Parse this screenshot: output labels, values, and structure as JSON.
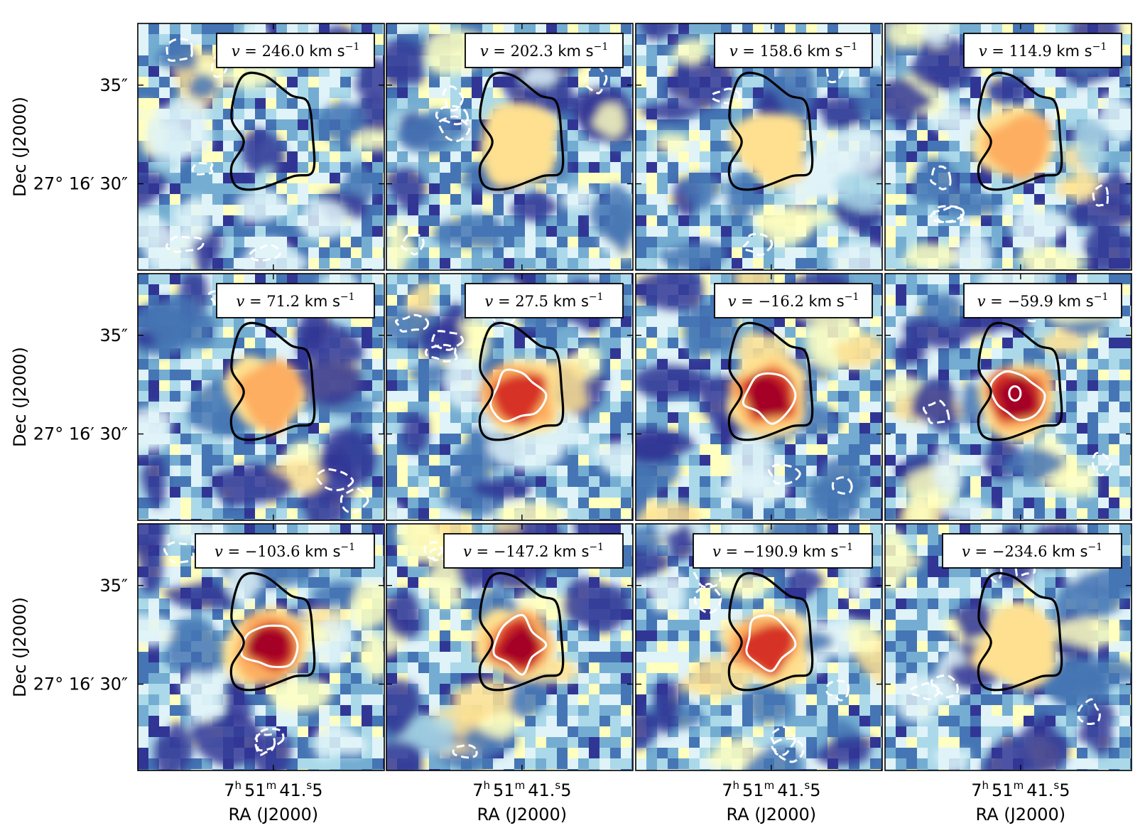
{
  "chart_data": {
    "type": "heatmap",
    "title": "",
    "layout": "3 rows x 4 columns of channel maps",
    "xlabel": "RA (J2000)",
    "ylabel": "Dec (J2000)",
    "x_tick_label": "7h51m41.s5",
    "x_tick_parts": {
      "h": "7",
      "h_unit": "h",
      "m": "51",
      "m_unit": "m",
      "s_int": "41.",
      "s_unit": "s",
      "s_frac": "5"
    },
    "y_tick_labels": [
      "35″",
      "27° 16′ 30″"
    ],
    "velocity_unit": "km s⁻¹",
    "panels": [
      {
        "row": 0,
        "col": 0,
        "label": "v = 246.0 km s⁻¹",
        "velocity": 246.0,
        "peak": 0.45
      },
      {
        "row": 0,
        "col": 1,
        "label": "v = 202.3 km s⁻¹",
        "velocity": 202.3,
        "peak": 0.55
      },
      {
        "row": 0,
        "col": 2,
        "label": "v = 158.6 km s⁻¹",
        "velocity": 158.6,
        "peak": 0.62
      },
      {
        "row": 0,
        "col": 3,
        "label": "v = 114.9 km s⁻¹",
        "velocity": 114.9,
        "peak": 0.68
      },
      {
        "row": 1,
        "col": 0,
        "label": "v = 71.2 km s⁻¹",
        "velocity": 71.2,
        "peak": 0.78
      },
      {
        "row": 1,
        "col": 1,
        "label": "v = 27.5 km s⁻¹",
        "velocity": 27.5,
        "peak": 0.85
      },
      {
        "row": 1,
        "col": 2,
        "label": "v = −16.2 km s⁻¹",
        "velocity": -16.2,
        "peak": 0.95
      },
      {
        "row": 1,
        "col": 3,
        "label": "v = −59.9 km s⁻¹",
        "velocity": -59.9,
        "peak": 0.97
      },
      {
        "row": 2,
        "col": 0,
        "label": "v = −103.6 km s⁻¹",
        "velocity": -103.6,
        "peak": 0.95
      },
      {
        "row": 2,
        "col": 1,
        "label": "v = −147.2 km s⁻¹",
        "velocity": -147.2,
        "peak": 0.93
      },
      {
        "row": 2,
        "col": 2,
        "label": "v = −190.9 km s⁻¹",
        "velocity": -190.9,
        "peak": 0.8
      },
      {
        "row": 2,
        "col": 3,
        "label": "v = −234.6 km s⁻¹",
        "velocity": -234.6,
        "peak": 0.62
      }
    ],
    "colormap": [
      "#313695",
      "#4575b4",
      "#74add1",
      "#abd9e9",
      "#e0f3f8",
      "#ffffbf",
      "#fee090",
      "#fdae61",
      "#f46d43",
      "#d73027",
      "#a50026"
    ],
    "contours": {
      "source_outline": "black",
      "positive": "white solid",
      "negative": "white dashed"
    }
  }
}
